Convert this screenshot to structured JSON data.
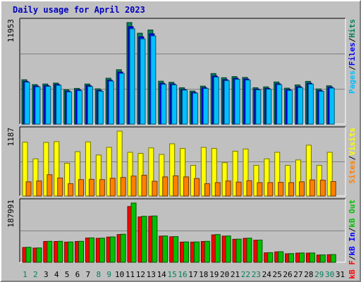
{
  "title": "Daily usage for April 2023",
  "chart_data": [
    {
      "type": "bar",
      "categories": [
        "1",
        "2",
        "3",
        "4",
        "5",
        "6",
        "7",
        "8",
        "9",
        "10",
        "11",
        "12",
        "13",
        "14",
        "15",
        "16",
        "17",
        "18",
        "19",
        "20",
        "21",
        "22",
        "23",
        "24",
        "25",
        "26",
        "27",
        "28",
        "29",
        "30",
        "31"
      ],
      "weekend_days": [
        "1",
        "2",
        "8",
        "9",
        "15",
        "16",
        "22",
        "23",
        "29",
        "30"
      ],
      "ymax_label": "11953",
      "ylim": [
        0,
        11953
      ],
      "grid": true,
      "series": [
        {
          "name": "Hits",
          "color": "#00805c",
          "values": [
            5220,
            4650,
            4720,
            4830,
            4040,
            4200,
            4720,
            4150,
            5400,
            6400,
            11953,
            10700,
            11080,
            5050,
            4920,
            4280,
            3890,
            4470,
            5950,
            5460,
            5590,
            5490,
            4280,
            4380,
            4960,
            4230,
            4610,
            5030,
            4140,
            4510,
            0
          ]
        },
        {
          "name": "Files",
          "color": "#0000ff",
          "values": [
            5030,
            4480,
            4530,
            4670,
            3880,
            4040,
            4530,
            3970,
            5180,
            6130,
            11470,
            10280,
            10630,
            4800,
            4720,
            4090,
            3730,
            4280,
            5660,
            5230,
            5380,
            5300,
            4120,
            4200,
            4750,
            4060,
            4400,
            4810,
            3940,
            4330,
            0
          ]
        },
        {
          "name": "Pages",
          "color": "#00c0ff",
          "values": [
            4930,
            4380,
            4440,
            4560,
            3790,
            3930,
            4420,
            3860,
            5060,
            5970,
            11220,
            10030,
            10380,
            4680,
            4620,
            4000,
            3640,
            4180,
            5530,
            5110,
            5260,
            5180,
            4030,
            4110,
            4640,
            3960,
            4290,
            4700,
            3850,
            4230,
            0
          ]
        }
      ],
      "legend": [
        "Pages",
        "Files",
        "Hits"
      ],
      "legend_separator": "/"
    },
    {
      "type": "bar",
      "categories": [
        "1",
        "2",
        "3",
        "4",
        "5",
        "6",
        "7",
        "8",
        "9",
        "10",
        "11",
        "12",
        "13",
        "14",
        "15",
        "16",
        "17",
        "18",
        "19",
        "20",
        "21",
        "22",
        "23",
        "24",
        "25",
        "26",
        "27",
        "28",
        "29",
        "30",
        "31"
      ],
      "ymax_label": "1187",
      "ylim": [
        0,
        1187
      ],
      "grid": true,
      "series": [
        {
          "name": "Visits",
          "color": "#ffff00",
          "values": [
            985,
            680,
            980,
            995,
            600,
            810,
            990,
            750,
            890,
            1187,
            800,
            780,
            880,
            760,
            955,
            870,
            560,
            890,
            870,
            610,
            820,
            860,
            560,
            680,
            800,
            560,
            660,
            930,
            560,
            800,
            0
          ]
        },
        {
          "name": "Sites",
          "color": "#ff8000",
          "values": [
            260,
            275,
            390,
            330,
            225,
            300,
            305,
            300,
            325,
            340,
            365,
            380,
            270,
            350,
            370,
            350,
            320,
            225,
            245,
            275,
            255,
            280,
            245,
            245,
            250,
            245,
            260,
            295,
            290,
            265,
            0
          ]
        }
      ],
      "legend": [
        "Sites",
        "Visits"
      ],
      "legend_separator": "/"
    },
    {
      "type": "bar",
      "categories": [
        "1",
        "2",
        "3",
        "4",
        "5",
        "6",
        "7",
        "8",
        "9",
        "10",
        "11",
        "12",
        "13",
        "14",
        "15",
        "16",
        "17",
        "18",
        "19",
        "20",
        "21",
        "22",
        "23",
        "24",
        "25",
        "26",
        "27",
        "28",
        "29",
        "30",
        "31"
      ],
      "ymax_label": "187991",
      "ylim": [
        0,
        187991
      ],
      "grid": true,
      "series": [
        {
          "name": "kB F",
          "color": "#ff0000",
          "values": [
            47000,
            45000,
            66000,
            66000,
            64000,
            66000,
            77000,
            76000,
            80000,
            88000,
            177000,
            144000,
            146000,
            83000,
            81000,
            64000,
            64000,
            66000,
            87000,
            83000,
            73000,
            76000,
            70000,
            30000,
            33000,
            27000,
            29000,
            29000,
            23000,
            24000,
            0
          ]
        },
        {
          "name": "kB In",
          "color": "#0000ff",
          "values": [
            0,
            0,
            0,
            0,
            0,
            0,
            0,
            0,
            0,
            0,
            0,
            0,
            0,
            0,
            0,
            0,
            0,
            0,
            0,
            0,
            0,
            0,
            0,
            0,
            0,
            0,
            0,
            0,
            0,
            0,
            0
          ]
        },
        {
          "name": "kB Out",
          "color": "#00c000",
          "values": [
            47500,
            45500,
            66500,
            66500,
            64500,
            66500,
            77500,
            76500,
            80500,
            89000,
            187991,
            146000,
            147000,
            83500,
            81500,
            64500,
            64500,
            66500,
            88000,
            83500,
            73500,
            76500,
            70500,
            30500,
            33500,
            27500,
            29500,
            29500,
            23500,
            24500,
            0
          ]
        }
      ],
      "legend": [
        "kB F",
        "kB In",
        "kB Out"
      ],
      "legend_separator": "/"
    }
  ]
}
